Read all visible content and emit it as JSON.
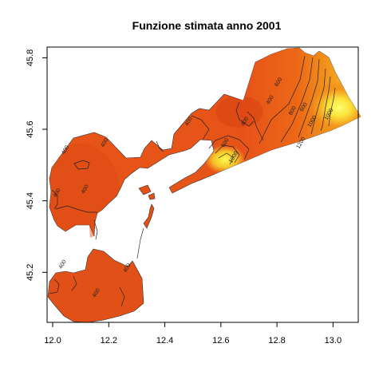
{
  "chart_data": {
    "type": "contour",
    "title": "Funzione stimata anno 2001",
    "xlabel": "",
    "ylabel": "",
    "xlim": [
      11.98,
      13.09
    ],
    "ylim": [
      45.06,
      45.83
    ],
    "x_ticks": [
      "12.0",
      "12.2",
      "12.4",
      "12.6",
      "12.8",
      "13.0"
    ],
    "y_ticks": [
      "45.2",
      "45.4",
      "45.6",
      "45.8"
    ],
    "contour_labels": [
      {
        "text": "400",
        "x": 12.05,
        "y": 45.54
      },
      {
        "text": "400",
        "x": 12.02,
        "y": 45.42
      },
      {
        "text": "400",
        "x": 12.12,
        "y": 45.43
      },
      {
        "text": "400",
        "x": 12.19,
        "y": 45.56
      },
      {
        "text": "400",
        "x": 12.49,
        "y": 45.62
      },
      {
        "text": "400",
        "x": 12.69,
        "y": 45.62
      },
      {
        "text": "600",
        "x": 12.62,
        "y": 45.56
      },
      {
        "text": "1000",
        "x": 12.65,
        "y": 45.52
      },
      {
        "text": "400",
        "x": 12.78,
        "y": 45.68
      },
      {
        "text": "600",
        "x": 12.81,
        "y": 45.73
      },
      {
        "text": "800",
        "x": 12.86,
        "y": 45.65
      },
      {
        "text": "600",
        "x": 12.9,
        "y": 45.66
      },
      {
        "text": "1000",
        "x": 12.93,
        "y": 45.62
      },
      {
        "text": "1200",
        "x": 12.89,
        "y": 45.56
      },
      {
        "text": "1000",
        "x": 12.99,
        "y": 45.64
      },
      {
        "text": "400",
        "x": 12.04,
        "y": 45.22
      },
      {
        "text": "400",
        "x": 12.16,
        "y": 45.14
      },
      {
        "text": "400",
        "x": 12.27,
        "y": 45.21
      }
    ]
  }
}
